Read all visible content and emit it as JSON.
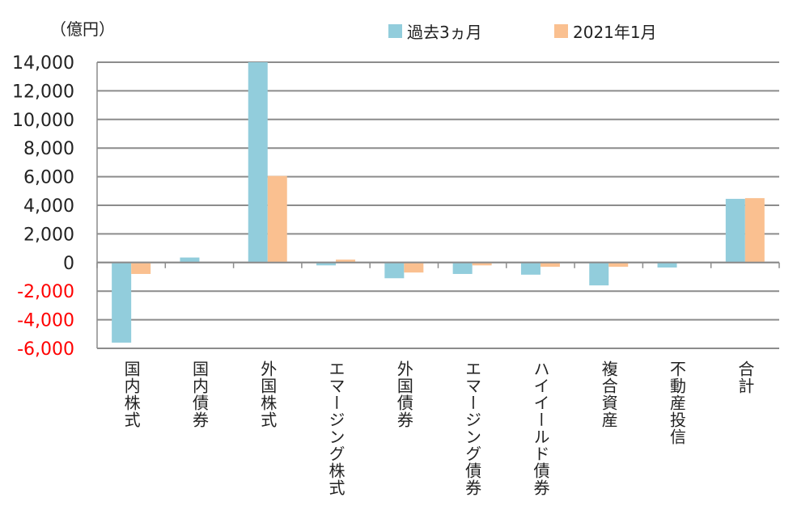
{
  "unit_label": "（億円）",
  "legend": [
    {
      "label": "過去3ヵ月",
      "color": "#92CDDC"
    },
    {
      "label": "2021年1月",
      "color": "#FAC090"
    }
  ],
  "chart_data": {
    "type": "bar",
    "title": "",
    "ylabel": "（億円）",
    "xlabel": "",
    "ylim": [
      -6000,
      14000
    ],
    "yticks": [
      14000,
      12000,
      10000,
      8000,
      6000,
      4000,
      2000,
      0,
      -2000,
      -4000,
      -6000
    ],
    "ytick_labels": [
      "14,000",
      "12,000",
      "10,000",
      "8,000",
      "6,000",
      "4,000",
      "2,000",
      "0",
      "-2,000",
      "-4,000",
      "-6,000"
    ],
    "negative_tick_color": "#FF0000",
    "grid": true,
    "legend_position": "top",
    "categories": [
      "国内株式",
      "国内債券",
      "外国株式",
      "エマージング株式",
      "外国債券",
      "エマージング債券",
      "ハイイールド債券",
      "複合資産",
      "不動産投信",
      "合計"
    ],
    "series": [
      {
        "name": "過去3ヵ月",
        "color": "#92CDDC",
        "values": [
          -5600,
          350,
          14000,
          -200,
          -1100,
          -800,
          -850,
          -1600,
          -350,
          4450
        ]
      },
      {
        "name": "2021年1月",
        "color": "#FAC090",
        "values": [
          -800,
          0,
          6050,
          200,
          -700,
          -200,
          -300,
          -300,
          0,
          4500
        ]
      }
    ]
  }
}
